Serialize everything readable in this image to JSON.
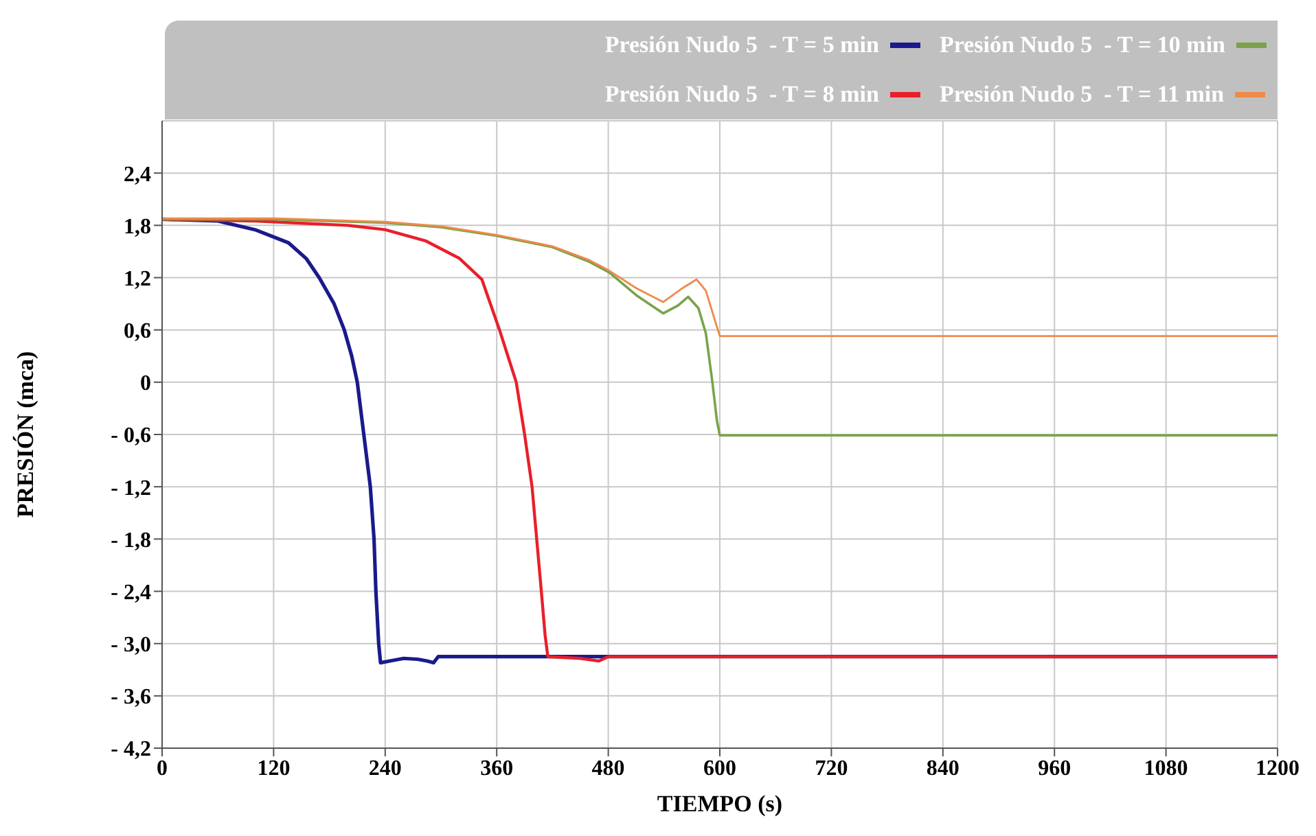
{
  "chart_data": {
    "type": "line",
    "xlabel": "TIEMPO (s)",
    "ylabel": "PRESIÓN (mca)",
    "xlim": [
      0,
      1200
    ],
    "xticks": [
      0,
      120,
      240,
      360,
      480,
      600,
      720,
      840,
      960,
      1080,
      1200
    ],
    "ylim": [
      -4.2,
      3.0
    ],
    "yticks": [
      {
        "value": 2.4,
        "label": "2,4"
      },
      {
        "value": 1.8,
        "label": "1,8"
      },
      {
        "value": 1.2,
        "label": "1,2"
      },
      {
        "value": 0.6,
        "label": "0,6"
      },
      0,
      {
        "value": -0.6,
        "label": "- 0,6"
      },
      {
        "value": -1.2,
        "label": "- 1,2"
      },
      {
        "value": -1.8,
        "label": "- 1,8"
      },
      {
        "value": -2.4,
        "label": "- 2,4"
      },
      {
        "value": -3.0,
        "label": "- 3,0"
      },
      {
        "value": -3.6,
        "label": "- 3,6"
      },
      {
        "value": -4.2,
        "label": "- 4,2"
      }
    ],
    "grid": true,
    "legend": "top right",
    "marker": "none",
    "line_style": "solid",
    "series": [
      {
        "name": "Presión Nudo 5  - T = 5 min",
        "color": "#1a1a8c",
        "x": [
          0,
          60,
          100,
          136,
          155,
          169,
          185,
          196,
          204,
          210,
          217,
          224,
          228,
          230,
          233,
          235,
          245,
          260,
          275,
          285,
          292,
          297,
          1200
        ],
        "values": [
          1.87,
          1.85,
          1.75,
          1.6,
          1.42,
          1.2,
          0.9,
          0.6,
          0.3,
          0,
          -0.6,
          -1.2,
          -1.8,
          -2.4,
          -3.0,
          -3.22,
          -3.2,
          -3.17,
          -3.18,
          -3.2,
          -3.22,
          -3.15,
          -3.15
        ]
      },
      {
        "name": "Presión Nudo 5  - T = 8 min",
        "color": "#e8202a",
        "x": [
          0,
          100,
          200,
          240,
          284,
          320,
          344,
          363,
          372,
          381,
          390,
          398,
          403,
          408,
          412,
          415,
          450,
          470,
          480,
          1200
        ],
        "values": [
          1.87,
          1.85,
          1.8,
          1.75,
          1.62,
          1.42,
          1.18,
          0.6,
          0.3,
          0,
          -0.6,
          -1.2,
          -1.8,
          -2.4,
          -2.9,
          -3.15,
          -3.17,
          -3.2,
          -3.15,
          -3.15
        ]
      },
      {
        "name": "Presión Nudo 5  - T = 10 min",
        "color": "#7aa34a",
        "x": [
          0,
          120,
          240,
          300,
          360,
          420,
          460,
          481,
          510,
          539,
          555,
          566,
          577,
          585,
          592,
          597,
          600,
          1200
        ],
        "values": [
          1.87,
          1.87,
          1.83,
          1.78,
          1.68,
          1.55,
          1.38,
          1.26,
          1.0,
          0.79,
          0.88,
          0.98,
          0.85,
          0.56,
          0.0,
          -0.45,
          -0.61,
          -0.61
        ]
      },
      {
        "name": "Presión Nudo 5  - T = 11 min",
        "color": "#f08a4b",
        "x": [
          0,
          120,
          240,
          300,
          360,
          420,
          460,
          481,
          510,
          539,
          560,
          575,
          585,
          595,
          600,
          1200
        ],
        "values": [
          1.88,
          1.88,
          1.84,
          1.79,
          1.69,
          1.56,
          1.4,
          1.28,
          1.08,
          0.92,
          1.08,
          1.18,
          1.05,
          0.7,
          0.53,
          0.53
        ]
      }
    ]
  }
}
